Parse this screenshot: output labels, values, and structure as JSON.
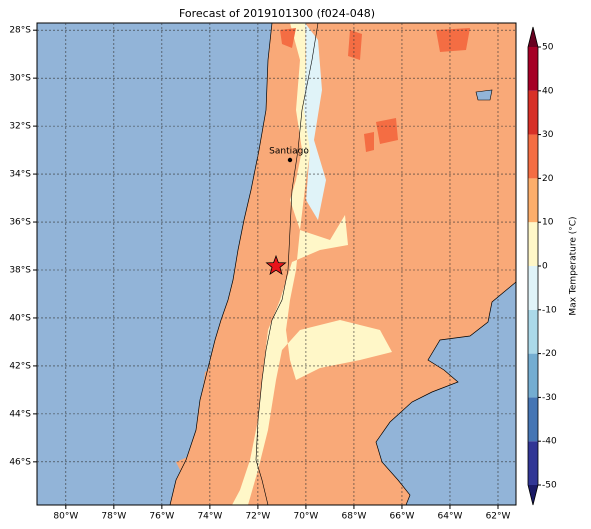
{
  "title": "Forecast of 2019101300 (f024-048)",
  "map": {
    "xlim": [
      -81.2,
      -61.25
    ],
    "ylim": [
      -47.8,
      -27.7
    ],
    "grid": true,
    "xticks": [
      {
        "value": -80,
        "label": "80°W"
      },
      {
        "value": -78,
        "label": "78°W"
      },
      {
        "value": -76,
        "label": "76°W"
      },
      {
        "value": -74,
        "label": "74°W"
      },
      {
        "value": -72,
        "label": "72°W"
      },
      {
        "value": -70,
        "label": "70°W"
      },
      {
        "value": -68,
        "label": "68°W"
      },
      {
        "value": -66,
        "label": "66°W"
      },
      {
        "value": -64,
        "label": "64°W"
      },
      {
        "value": -62,
        "label": "62°W"
      }
    ],
    "yticks": [
      {
        "value": -28,
        "label": "28°S"
      },
      {
        "value": -30,
        "label": "30°S"
      },
      {
        "value": -32,
        "label": "32°S"
      },
      {
        "value": -34,
        "label": "34°S"
      },
      {
        "value": -36,
        "label": "36°S"
      },
      {
        "value": -38,
        "label": "38°S"
      },
      {
        "value": -40,
        "label": "40°S"
      },
      {
        "value": -42,
        "label": "42°S"
      },
      {
        "value": -44,
        "label": "44°S"
      },
      {
        "value": -46,
        "label": "46°S"
      }
    ],
    "city": "Santiago"
  },
  "colorbar": {
    "label": "Max Temperature (°C)",
    "lim": [
      -50,
      50
    ],
    "ticks": [
      -50,
      -40,
      -30,
      -20,
      -10,
      0,
      10,
      20,
      30,
      40,
      50
    ],
    "colors": [
      "#313695",
      "#4575b4",
      "#74add1",
      "#abd9e9",
      "#e0f3f8",
      "#fff7c8",
      "#fdae6b",
      "#f46d43",
      "#d73027",
      "#a50026"
    ],
    "under_color": "#1a1a66",
    "over_color": "#67001f"
  }
}
